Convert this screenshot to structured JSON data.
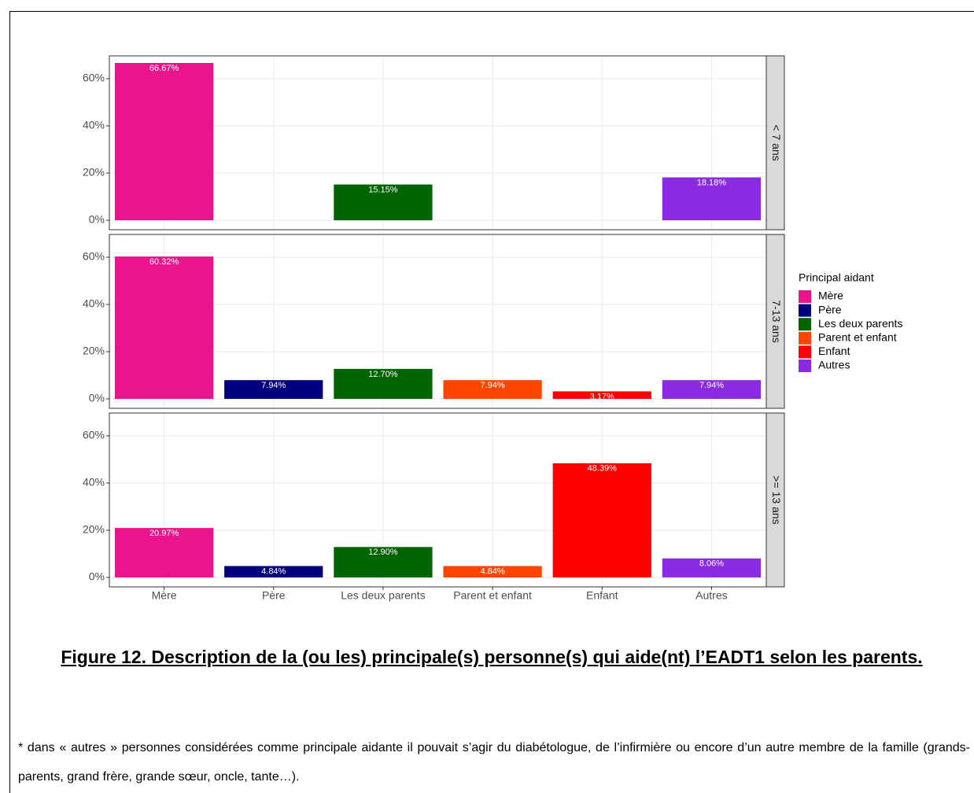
{
  "chart_data": {
    "type": "bar",
    "categories": [
      "Mère",
      "Père",
      "Les deux parents",
      "Parent et enfant",
      "Enfant",
      "Autres"
    ],
    "colors": [
      "#ea148c",
      "#00007f",
      "#006400",
      "#ff4500",
      "#ff0000",
      "#8a2be2"
    ],
    "legend_title": "Principal aidant",
    "ylim": [
      -4,
      69.67
    ],
    "yticks": [
      {
        "value": 0,
        "label": "0%"
      },
      {
        "value": 20,
        "label": "20%"
      },
      {
        "value": 40,
        "label": "40%"
      },
      {
        "value": 60,
        "label": "60%"
      }
    ],
    "grid": true,
    "facets": [
      {
        "label": "< 7 ans",
        "values": [
          66.67,
          null,
          15.15,
          null,
          null,
          18.18
        ],
        "value_labels": [
          "66.67%",
          null,
          "15.15%",
          null,
          null,
          "18.18%"
        ]
      },
      {
        "label": "7-13 ans",
        "values": [
          60.32,
          7.94,
          12.7,
          7.94,
          3.17,
          7.94
        ],
        "value_labels": [
          "60.32%",
          "7.94%",
          "12.70%",
          "7.94%",
          "3.17%",
          "7.94%"
        ]
      },
      {
        "label": ">= 13 ans",
        "values": [
          20.97,
          4.84,
          12.9,
          4.84,
          48.39,
          8.06
        ],
        "value_labels": [
          "20.97%",
          "4.84%",
          "12.90%",
          "4.84%",
          "48.39%",
          "8.06%"
        ]
      }
    ]
  },
  "caption": {
    "title": "Figure 12. Description de la (ou les) principale(s) personne(s) qui aide(nt) l’EADT1 selon les parents.",
    "note": "* dans « autres » personnes considérées comme principale aidante il pouvait s’agir du diabétologue, de l’infirmière ou encore d’un autre membre de la famille (grands-parents, grand frère, grande sœur, oncle, tante…)."
  }
}
